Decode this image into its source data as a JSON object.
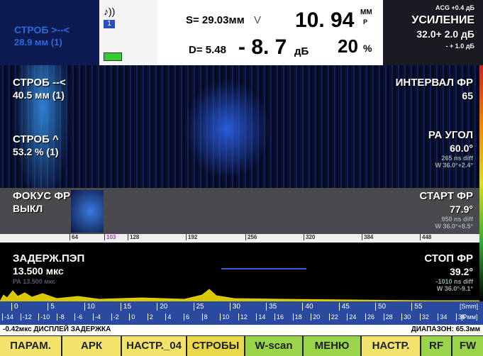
{
  "header": {
    "gate_label": "СТРОБ >--<",
    "gate_value": "28.9 мм (1)",
    "channel": "1",
    "s_label": "S= 29.03мм",
    "v_mark": "V",
    "main_value": "10. 94",
    "main_unit_top": "ММ",
    "main_unit_bottom": "Р",
    "d_label": "D= 5.48",
    "gain_value": "- 8. 7",
    "gain_unit": "дБ",
    "percent_value": "20",
    "percent_unit": "%",
    "acg": "ACG +0.4 дБ",
    "gain_title": "УСИЛЕНИЕ",
    "gain_setting": "32.0+ 2.0 дБ",
    "gain_step": "- + 1.0 дБ"
  },
  "left_labels": [
    {
      "title": "СТРОБ --<",
      "value": "40.5 мм (1)"
    },
    {
      "title": "СТРОБ ^",
      "value": "53.2 % (1)"
    },
    {
      "title": "ФОКУС ФР",
      "value": "ВЫКЛ"
    },
    {
      "title": "ЗАДЕРЖ.ПЭП",
      "value": "13.500 мкс",
      "sub": "РА 13.500 мкс"
    }
  ],
  "right_labels": [
    {
      "title": "ИНТЕРВАЛ ФР",
      "value": "65"
    },
    {
      "title": "РА УГОЛ",
      "value": "60.0°",
      "diff": "265 ns diff",
      "w": "W 36.0°+2.4°"
    },
    {
      "title": "СТАРТ ФР",
      "value": "77.9°",
      "diff": "950 ns diff",
      "w": "W 36.0°+8.5°"
    },
    {
      "title": "СТОП ФР",
      "value": "39.2°",
      "diff": "-1010 ns diff",
      "w": "W 36.0°-9.1°"
    }
  ],
  "scale": [
    "64",
    "103",
    "128",
    "192",
    "256",
    "320",
    "384",
    "448"
  ],
  "ruler_s": [
    "0",
    "5",
    "10",
    "15",
    "20",
    "25",
    "30",
    "35",
    "40",
    "45",
    "50",
    "55"
  ],
  "ruler_s_unit": "[Smm]",
  "ruler_p": [
    "-14",
    "-12",
    "-10",
    "-8",
    "-6",
    "-4",
    "-2",
    "0",
    "2",
    "4",
    "6",
    "8",
    "10",
    "12",
    "14",
    "16",
    "18",
    "20",
    "22",
    "24",
    "26",
    "28",
    "30",
    "32",
    "34",
    "36"
  ],
  "ruler_p_unit": "[Pмм]",
  "status": {
    "left": "-0.42мкс ДИСПЛЕЙ ЗАДЕРЖКА",
    "right": "ДИАПАЗОН: 65.3мм"
  },
  "buttons": [
    "ПАРАМ.",
    "АРК",
    "НАСТР._04",
    "СТРОБЫ",
    "W-scan",
    "МЕНЮ",
    "НАСТР.",
    "RF",
    "FW"
  ]
}
